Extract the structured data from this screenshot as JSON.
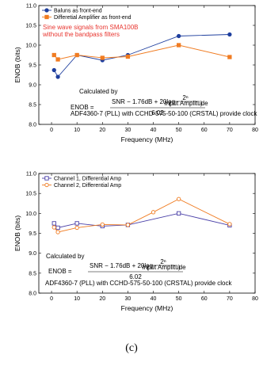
{
  "chart_data": [
    {
      "type": "line",
      "xlabel": "Frequency (MHz)",
      "ylabel": "ENOB (bits)",
      "xlim": [
        -5,
        80
      ],
      "ylim": [
        8.0,
        11.0
      ],
      "xticks": [
        "0",
        "10",
        "20",
        "30",
        "40",
        "50",
        "60",
        "70",
        "80"
      ],
      "yticks": [
        "8.0",
        "8.5",
        "9.0",
        "9.5",
        "10.0",
        "10.5",
        "11.0"
      ],
      "legend_position": "top-left",
      "series": [
        {
          "name": "Baluns as front-end",
          "color": "#1f3f9e",
          "marker": "circle-filled",
          "points": [
            [
              1,
              9.37
            ],
            [
              2.5,
              9.2
            ],
            [
              10,
              9.75
            ],
            [
              20,
              9.62
            ],
            [
              30,
              9.75
            ],
            [
              50,
              10.23
            ],
            [
              70,
              10.27
            ]
          ]
        },
        {
          "name": "Differetial Amplifier as front-end",
          "color": "#f07c22",
          "marker": "square-filled",
          "points": [
            [
              1,
              9.75
            ],
            [
              2.5,
              9.64
            ],
            [
              10,
              9.75
            ],
            [
              20,
              9.68
            ],
            [
              30,
              9.71
            ],
            [
              50,
              10.0
            ],
            [
              70,
              9.7
            ]
          ]
        }
      ],
      "annotations": [
        {
          "id": "sine",
          "lines": [
            "Sine wave signals from SMA100B",
            "without the bandpass filters"
          ],
          "color": "#e8352f"
        },
        {
          "id": "calc",
          "text": "Calculated by"
        },
        {
          "id": "clock",
          "text": "ADF4360-7 (PLL) with CCHD-575-50-100 (CRSTAL) provide clock"
        }
      ]
    },
    {
      "type": "line",
      "xlabel": "Frequency (MHz)",
      "ylabel": "ENOB (bits)",
      "xlim": [
        -5,
        80
      ],
      "ylim": [
        8.0,
        11.0
      ],
      "xticks": [
        "0",
        "10",
        "20",
        "30",
        "40",
        "50",
        "60",
        "70",
        "80"
      ],
      "yticks": [
        "8.0",
        "8.5",
        "9.0",
        "9.5",
        "10.0",
        "10.5",
        "11.0"
      ],
      "legend_position": "top-left",
      "series": [
        {
          "name": "Channel 1, Differential Amp",
          "color": "#4a40a8",
          "marker": "square-open",
          "points": [
            [
              1,
              9.75
            ],
            [
              2.5,
              9.64
            ],
            [
              10,
              9.75
            ],
            [
              20,
              9.68
            ],
            [
              30,
              9.71
            ],
            [
              50,
              10.0
            ],
            [
              70,
              9.7
            ]
          ]
        },
        {
          "name": "Channel 2, Differential Amp",
          "color": "#f07c22",
          "marker": "circle-open",
          "points": [
            [
              1,
              9.65
            ],
            [
              2.5,
              9.53
            ],
            [
              10,
              9.64
            ],
            [
              20,
              9.72
            ],
            [
              30,
              9.71
            ],
            [
              40,
              10.03
            ],
            [
              50,
              10.36
            ],
            [
              70,
              9.73
            ]
          ]
        }
      ],
      "annotations": [
        {
          "id": "calc",
          "text": "Calculated by"
        },
        {
          "id": "clock",
          "text": "ADF4360-7 (PLL) with CCHD-575-50-100 (CRSTAL) provide clock"
        }
      ]
    }
  ],
  "formula": {
    "lhs": "ENOB =",
    "numerator_main": "SNR − 1.76dB + 20log",
    "frac_num": "2ⁿ",
    "frac_den": "Input Amplitude",
    "denominator": "6.02"
  },
  "caption": "(c)"
}
